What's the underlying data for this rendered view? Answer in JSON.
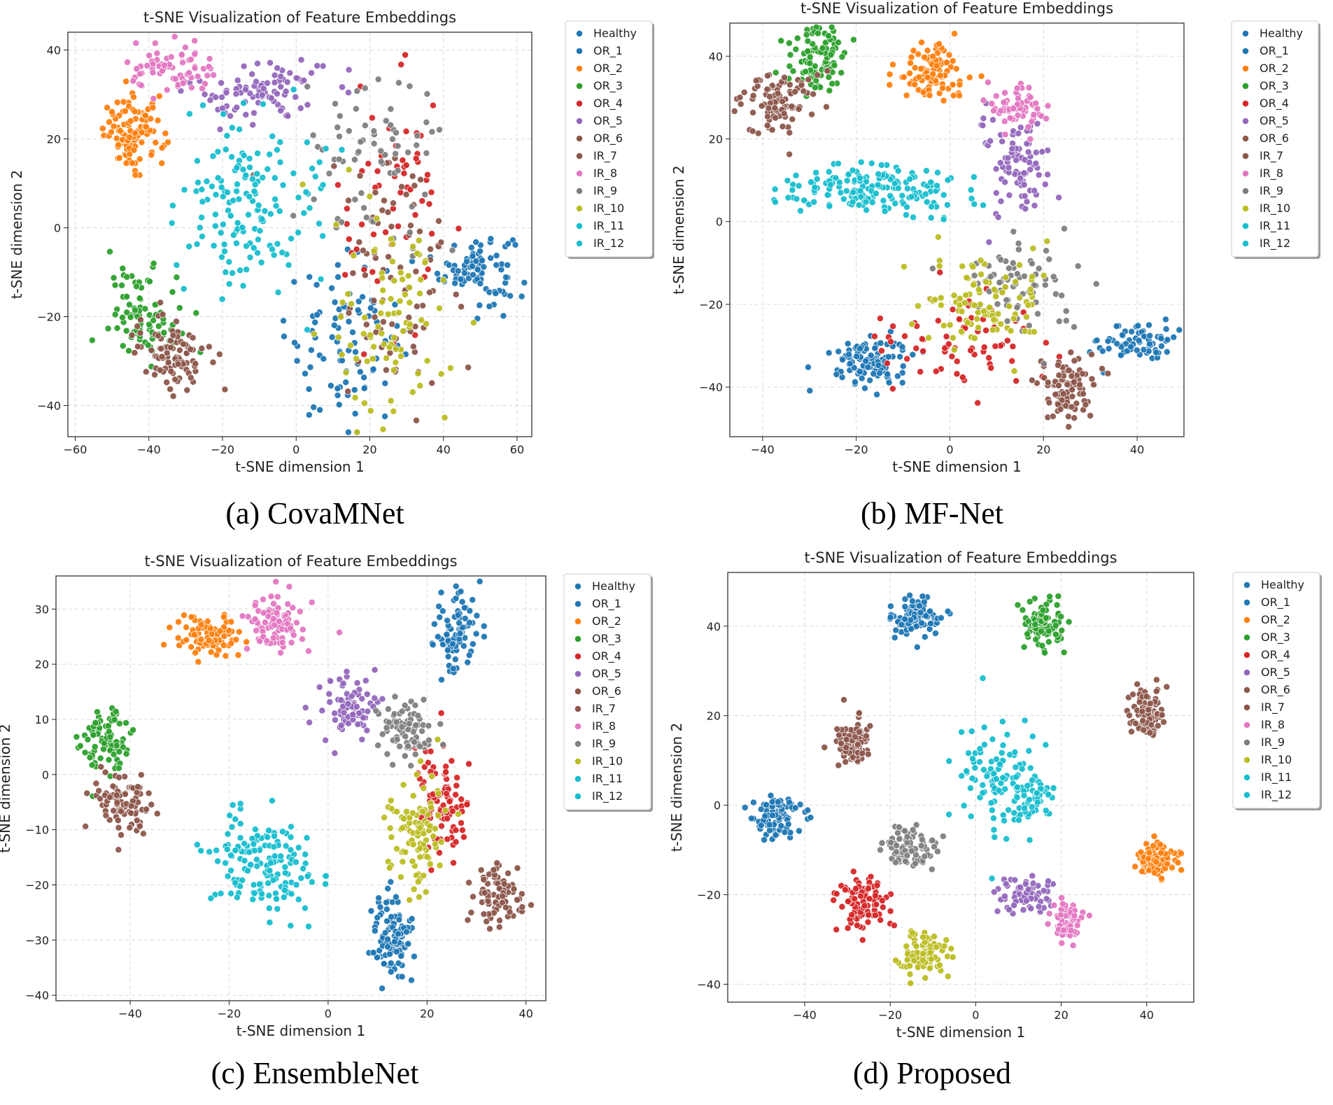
{
  "figure": {
    "captions": [
      "(a) CovaMNet",
      "(b) MF-Net",
      "(c) EnsembleNet",
      "(d) Proposed"
    ]
  },
  "colors": {
    "Healthy": "#1f77b4",
    "OR_1": "#1f77b4",
    "OR_2": "#ff7f0e",
    "OR_3": "#2ca02c",
    "OR_4": "#d62728",
    "OR_5": "#9467bd",
    "OR_6": "#8c564b",
    "IR_7": "#8c564b",
    "IR_8": "#e377c2",
    "IR_9": "#7f7f7f",
    "IR_10": "#bcbd22",
    "IR_11": "#17becf",
    "IR_12": "#17becf"
  },
  "chart_data": [
    {
      "type": "scatter",
      "title": "t-SNE Visualization of Feature Embeddings",
      "xlabel": "t-SNE dimension 1",
      "ylabel": "t-SNE dimension 2",
      "xlim": [
        -62,
        64
      ],
      "ylim": [
        -47,
        44
      ],
      "xticks": [
        -60,
        -40,
        -20,
        0,
        20,
        40,
        60
      ],
      "yticks": [
        -40,
        -20,
        0,
        20,
        40
      ],
      "xtick_labels": [
        "−60",
        "−40",
        "−20",
        "0",
        "20",
        "40",
        "60"
      ],
      "ytick_labels": [
        "−40",
        "−20",
        "0",
        "20",
        "40"
      ],
      "grid": true,
      "legend": [
        "Healthy",
        "OR_1",
        "OR_2",
        "OR_3",
        "OR_4",
        "OR_5",
        "OR_6",
        "IR_7",
        "IR_8",
        "IR_9",
        "IR_10",
        "IR_11",
        "IR_12"
      ],
      "legend_position": "outside-right",
      "clusters": [
        {
          "label": "Healthy",
          "cx": 49,
          "cy": -9,
          "sx": 5,
          "sy": 4,
          "n": 90
        },
        {
          "label": "OR_1",
          "cx": 13,
          "cy": -25,
          "sx": 8,
          "sy": 9,
          "n": 90
        },
        {
          "label": "OR_2",
          "cx": -44,
          "cy": 21,
          "sx": 4,
          "sy": 4,
          "n": 110
        },
        {
          "label": "OR_3",
          "cx": -41,
          "cy": -19,
          "sx": 5,
          "sy": 5,
          "n": 90
        },
        {
          "label": "OR_4",
          "cx": 27,
          "cy": 3,
          "sx": 8,
          "sy": 14,
          "n": 60
        },
        {
          "label": "OR_5",
          "cx": -10,
          "cy": 31,
          "sx": 9,
          "sy": 4,
          "n": 90
        },
        {
          "label": "OR_6",
          "cx": -34,
          "cy": -28,
          "sx": 5,
          "sy": 4,
          "n": 90
        },
        {
          "label": "IR_7",
          "cx": 28,
          "cy": -10,
          "sx": 10,
          "sy": 16,
          "n": 80
        },
        {
          "label": "IR_8",
          "cx": -33,
          "cy": 35,
          "sx": 6,
          "sy": 3,
          "n": 70
        },
        {
          "label": "IR_9",
          "cx": 20,
          "cy": 15,
          "sx": 10,
          "sy": 10,
          "n": 70
        },
        {
          "label": "IR_10",
          "cx": 27,
          "cy": -22,
          "sx": 8,
          "sy": 12,
          "n": 90
        },
        {
          "label": "IR_11",
          "cx": -17,
          "cy": 4,
          "sx": 7,
          "sy": 9,
          "n": 100
        },
        {
          "label": "IR_12",
          "cx": -5,
          "cy": 10,
          "sx": 10,
          "sy": 12,
          "n": 50
        }
      ]
    },
    {
      "type": "scatter",
      "title": "t-SNE Visualization of Feature Embeddings",
      "xlabel": "t-SNE dimension 1",
      "ylabel": "t-SNE dimension 2",
      "xlim": [
        -47,
        50
      ],
      "ylim": [
        -52,
        48
      ],
      "xticks": [
        -40,
        -20,
        0,
        20,
        40
      ],
      "yticks": [
        -40,
        -20,
        0,
        20,
        40
      ],
      "xtick_labels": [
        "−40",
        "−20",
        "0",
        "20",
        "40"
      ],
      "ytick_labels": [
        "−40",
        "−20",
        "0",
        "20",
        "40"
      ],
      "grid": true,
      "legend": [
        "Healthy",
        "OR_1",
        "OR_2",
        "OR_3",
        "OR_4",
        "OR_5",
        "OR_6",
        "IR_7",
        "IR_8",
        "IR_9",
        "IR_10",
        "IR_11",
        "IR_12"
      ],
      "legend_position": "outside-right",
      "clusters": [
        {
          "label": "Healthy",
          "cx": 40,
          "cy": -29,
          "sx": 4,
          "sy": 2.5,
          "n": 70
        },
        {
          "label": "OR_1",
          "cx": -17,
          "cy": -34,
          "sx": 4,
          "sy": 3,
          "n": 110
        },
        {
          "label": "OR_2",
          "cx": -4,
          "cy": 36,
          "sx": 4,
          "sy": 3.5,
          "n": 100
        },
        {
          "label": "OR_3",
          "cx": -28,
          "cy": 40,
          "sx": 3,
          "sy": 4,
          "n": 100
        },
        {
          "label": "OR_4",
          "cx": 2,
          "cy": -28,
          "sx": 9,
          "sy": 5,
          "n": 70
        },
        {
          "label": "OR_5",
          "cx": 13,
          "cy": 14,
          "sx": 4,
          "sy": 6,
          "n": 90
        },
        {
          "label": "OR_6",
          "cx": -37,
          "cy": 28,
          "sx": 4,
          "sy": 4,
          "n": 90
        },
        {
          "label": "IR_7",
          "cx": 25,
          "cy": -40,
          "sx": 3,
          "sy": 3.5,
          "n": 100
        },
        {
          "label": "IR_8",
          "cx": 14,
          "cy": 28,
          "sx": 3,
          "sy": 3,
          "n": 60
        },
        {
          "label": "IR_9",
          "cx": 16,
          "cy": -16,
          "sx": 6,
          "sy": 5,
          "n": 70
        },
        {
          "label": "IR_10",
          "cx": 7,
          "cy": -20,
          "sx": 7,
          "sy": 6,
          "n": 100
        },
        {
          "label": "IR_11",
          "cx": -18,
          "cy": 8,
          "sx": 10,
          "sy": 3,
          "n": 130
        },
        {
          "label": "IR_12",
          "cx": -8,
          "cy": 6,
          "sx": 10,
          "sy": 3,
          "n": 40
        }
      ]
    },
    {
      "type": "scatter",
      "title": "t-SNE Visualization of Feature Embeddings",
      "xlabel": "t-SNE dimension 1",
      "ylabel": "t-SNE dimension 2",
      "xlim": [
        -55,
        44
      ],
      "ylim": [
        -41,
        36
      ],
      "xticks": [
        -40,
        -20,
        0,
        20,
        40
      ],
      "yticks": [
        -40,
        -30,
        -20,
        -10,
        0,
        10,
        20,
        30
      ],
      "xtick_labels": [
        "−40",
        "−20",
        "0",
        "20",
        "40"
      ],
      "ytick_labels": [
        "−40",
        "−30",
        "−20",
        "−10",
        "0",
        "10",
        "20",
        "30"
      ],
      "grid": true,
      "legend": [
        "Healthy",
        "OR_1",
        "OR_2",
        "OR_3",
        "OR_4",
        "OR_5",
        "OR_6",
        "IR_7",
        "IR_8",
        "IR_9",
        "IR_10",
        "IR_11",
        "IR_12"
      ],
      "legend_position": "outside-right",
      "clusters": [
        {
          "label": "Healthy",
          "cx": 26,
          "cy": 26,
          "sx": 2.5,
          "sy": 4,
          "n": 90
        },
        {
          "label": "OR_1",
          "cx": 13,
          "cy": -30,
          "sx": 2,
          "sy": 4,
          "n": 100
        },
        {
          "label": "OR_2",
          "cx": -24,
          "cy": 25,
          "sx": 3.5,
          "sy": 2,
          "n": 80
        },
        {
          "label": "OR_3",
          "cx": -45,
          "cy": 6,
          "sx": 2.5,
          "sy": 3,
          "n": 90
        },
        {
          "label": "OR_4",
          "cx": 23,
          "cy": -5,
          "sx": 2.5,
          "sy": 5,
          "n": 90
        },
        {
          "label": "OR_5",
          "cx": 4,
          "cy": 12,
          "sx": 3,
          "sy": 3,
          "n": 80
        },
        {
          "label": "OR_6",
          "cx": -42,
          "cy": -5,
          "sx": 3,
          "sy": 2.5,
          "n": 90
        },
        {
          "label": "IR_7",
          "cx": 34,
          "cy": -22,
          "sx": 2.5,
          "sy": 2.5,
          "n": 90
        },
        {
          "label": "IR_8",
          "cx": -10,
          "cy": 27,
          "sx": 3,
          "sy": 3,
          "n": 90
        },
        {
          "label": "IR_9",
          "cx": 16,
          "cy": 8,
          "sx": 3,
          "sy": 3,
          "n": 80
        },
        {
          "label": "IR_10",
          "cx": 18,
          "cy": -10,
          "sx": 3,
          "sy": 5,
          "n": 100
        },
        {
          "label": "IR_11",
          "cx": -15,
          "cy": -15,
          "sx": 5,
          "sy": 4,
          "n": 110
        },
        {
          "label": "IR_12",
          "cx": -11,
          "cy": -18,
          "sx": 5,
          "sy": 4,
          "n": 50
        }
      ]
    },
    {
      "type": "scatter",
      "title": "t-SNE Visualization of Feature Embeddings",
      "xlabel": "t-SNE dimension 1",
      "ylabel": "t-SNE dimension 2",
      "xlim": [
        -58,
        51
      ],
      "ylim": [
        -44,
        52
      ],
      "xticks": [
        -40,
        -20,
        0,
        20,
        40
      ],
      "yticks": [
        -40,
        -20,
        0,
        20,
        40
      ],
      "xtick_labels": [
        "−40",
        "−20",
        "0",
        "20",
        "40"
      ],
      "ytick_labels": [
        "−40",
        "−20",
        "0",
        "20",
        "40"
      ],
      "grid": true,
      "legend": [
        "Healthy",
        "OR_1",
        "OR_2",
        "OR_3",
        "OR_4",
        "OR_5",
        "OR_6",
        "IR_7",
        "IR_8",
        "IR_9",
        "IR_10",
        "IR_11",
        "IR_12"
      ],
      "legend_position": "outside-right",
      "clusters": [
        {
          "label": "Healthy",
          "cx": -47,
          "cy": -3,
          "sx": 3,
          "sy": 2.5,
          "n": 90
        },
        {
          "label": "OR_1",
          "cx": -14,
          "cy": 42,
          "sx": 3,
          "sy": 2,
          "n": 90
        },
        {
          "label": "OR_2",
          "cx": 42,
          "cy": -12,
          "sx": 2.5,
          "sy": 2,
          "n": 90
        },
        {
          "label": "OR_3",
          "cx": 16,
          "cy": 40,
          "sx": 2.5,
          "sy": 3,
          "n": 90
        },
        {
          "label": "OR_4",
          "cx": -26,
          "cy": -22,
          "sx": 3,
          "sy": 3,
          "n": 90
        },
        {
          "label": "OR_5",
          "cx": 11,
          "cy": -20,
          "sx": 3,
          "sy": 2,
          "n": 70
        },
        {
          "label": "OR_6",
          "cx": 40,
          "cy": 20,
          "sx": 2,
          "sy": 3,
          "n": 90
        },
        {
          "label": "IR_7",
          "cx": -29,
          "cy": 14,
          "sx": 2,
          "sy": 3,
          "n": 90
        },
        {
          "label": "IR_8",
          "cx": 21,
          "cy": -26,
          "sx": 2,
          "sy": 2,
          "n": 60
        },
        {
          "label": "IR_9",
          "cx": -15,
          "cy": -10,
          "sx": 3.5,
          "sy": 2.5,
          "n": 80
        },
        {
          "label": "IR_10",
          "cx": -13,
          "cy": -33,
          "sx": 3,
          "sy": 2.5,
          "n": 90
        },
        {
          "label": "IR_11",
          "cx": 5,
          "cy": 6,
          "sx": 5,
          "sy": 6,
          "n": 110
        },
        {
          "label": "IR_12",
          "cx": 14,
          "cy": 1,
          "sx": 2,
          "sy": 3,
          "n": 40
        }
      ]
    }
  ]
}
